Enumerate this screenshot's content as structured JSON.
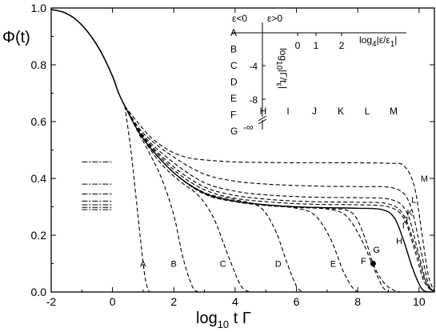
{
  "chart_data": {
    "type": "line",
    "title": "",
    "xlabel_parts": [
      "log",
      "10",
      " t Γ"
    ],
    "ylabel_parts": [
      "Φ(t)"
    ],
    "xlim": [
      -2,
      10.5
    ],
    "ylim": [
      0,
      1.0
    ],
    "x_ticks": [
      -2,
      0,
      2,
      4,
      6,
      8,
      10
    ],
    "y_ticks": [
      0.0,
      0.2,
      0.4,
      0.6,
      0.8,
      1.0
    ],
    "x_tick_labels": [
      "-2",
      "0",
      "2",
      "4",
      "6",
      "8",
      "10"
    ],
    "y_tick_labels": [
      "0.0",
      "0.2",
      "0.4",
      "0.6",
      "0.8",
      "1.0"
    ],
    "grid": false,
    "legend": "none",
    "series_common_start": {
      "x": [
        -2.0,
        -1.6,
        -1.2,
        -0.8,
        -0.4,
        0.0,
        0.2,
        0.4
      ],
      "y": [
        0.995,
        0.985,
        0.96,
        0.915,
        0.85,
        0.76,
        0.7,
        0.655
      ]
    },
    "series": [
      {
        "label": "A",
        "style": "dashed",
        "label_pos": [
          0.9,
          0.1
        ],
        "x": [
          0.4,
          0.6,
          0.8,
          1.0,
          1.1,
          1.2
        ],
        "y": [
          0.655,
          0.5,
          0.3,
          0.1,
          0.03,
          0.0
        ]
      },
      {
        "label": "B",
        "style": "dashed",
        "label_pos": [
          1.9,
          0.1
        ],
        "x": [
          0.4,
          0.8,
          1.2,
          1.6,
          2.0,
          2.3,
          2.6,
          2.8
        ],
        "y": [
          0.655,
          0.57,
          0.49,
          0.4,
          0.27,
          0.12,
          0.02,
          0.0
        ]
      },
      {
        "label": "C",
        "style": "dashed",
        "label_pos": [
          3.5,
          0.1
        ],
        "x": [
          0.4,
          1.0,
          1.6,
          2.2,
          2.8,
          3.3,
          3.8,
          4.2,
          4.5
        ],
        "y": [
          0.655,
          0.54,
          0.45,
          0.39,
          0.34,
          0.26,
          0.12,
          0.02,
          0.0
        ]
      },
      {
        "label": "D",
        "style": "dashed",
        "label_pos": [
          5.3,
          0.1
        ],
        "x": [
          0.4,
          1.0,
          2.0,
          3.0,
          4.0,
          4.8,
          5.3,
          5.7,
          6.0,
          6.2
        ],
        "y": [
          0.655,
          0.54,
          0.42,
          0.35,
          0.325,
          0.3,
          0.22,
          0.1,
          0.02,
          0.0
        ]
      },
      {
        "label": "E",
        "style": "dashed",
        "label_pos": [
          7.1,
          0.1
        ],
        "x": [
          0.4,
          1.0,
          2.0,
          3.0,
          4.0,
          5.0,
          6.0,
          6.6,
          7.1,
          7.5,
          7.8,
          8.0
        ],
        "y": [
          0.655,
          0.54,
          0.42,
          0.345,
          0.318,
          0.305,
          0.295,
          0.27,
          0.19,
          0.08,
          0.02,
          0.0
        ]
      },
      {
        "label": "F",
        "style": "dashed",
        "label_pos": [
          8.1,
          0.11
        ],
        "x": [
          0.4,
          1.0,
          2.0,
          3.0,
          4.0,
          5.0,
          6.0,
          7.0,
          7.6,
          8.1,
          8.5,
          8.8,
          9.0
        ],
        "y": [
          0.655,
          0.54,
          0.42,
          0.345,
          0.318,
          0.305,
          0.298,
          0.292,
          0.27,
          0.19,
          0.09,
          0.02,
          0.0
        ]
      },
      {
        "label": "G",
        "style": "dashed",
        "label_pos": [
          8.5,
          0.15
        ],
        "x": [
          0.4,
          1.0,
          2.0,
          3.0,
          4.0,
          5.0,
          6.0,
          7.0,
          7.8,
          8.2,
          8.5,
          8.8,
          9.1,
          9.4
        ],
        "y": [
          0.655,
          0.54,
          0.42,
          0.345,
          0.318,
          0.305,
          0.298,
          0.294,
          0.28,
          0.2,
          0.1,
          0.04,
          0.01,
          0.0
        ]
      },
      {
        "label": "H",
        "style": "solid",
        "label_pos": [
          9.25,
          0.18
        ],
        "x": [
          0.4,
          1.0,
          2.0,
          3.0,
          4.0,
          5.0,
          6.0,
          7.0,
          8.0,
          8.8,
          9.2,
          9.5,
          9.8,
          10.1,
          10.4
        ],
        "y": [
          0.655,
          0.54,
          0.42,
          0.348,
          0.32,
          0.307,
          0.3,
          0.297,
          0.295,
          0.29,
          0.26,
          0.18,
          0.08,
          0.01,
          0.0
        ]
      },
      {
        "label": "I",
        "style": "dashed",
        "label_pos": [
          9.45,
          0.235
        ],
        "x": [
          0.4,
          1.0,
          2.0,
          3.0,
          4.0,
          5.0,
          6.0,
          7.0,
          8.0,
          9.0,
          9.5,
          9.85,
          10.15,
          10.45
        ],
        "y": [
          0.655,
          0.545,
          0.43,
          0.36,
          0.33,
          0.318,
          0.311,
          0.308,
          0.307,
          0.3,
          0.26,
          0.15,
          0.04,
          0.0
        ]
      },
      {
        "label": "J",
        "style": "dashed",
        "label_pos": [
          9.5,
          0.255
        ],
        "x": [
          0.4,
          1.0,
          2.0,
          3.0,
          4.0,
          5.0,
          6.0,
          7.0,
          8.0,
          9.0,
          9.5,
          9.9,
          10.2,
          10.5
        ],
        "y": [
          0.655,
          0.548,
          0.44,
          0.37,
          0.34,
          0.327,
          0.32,
          0.317,
          0.316,
          0.31,
          0.27,
          0.15,
          0.04,
          0.0
        ]
      },
      {
        "label": "K",
        "style": "dashed",
        "label_pos": [
          9.6,
          0.28
        ],
        "x": [
          0.4,
          1.0,
          2.0,
          3.0,
          4.0,
          5.0,
          6.0,
          7.0,
          8.0,
          9.1,
          9.6,
          9.95,
          10.25,
          10.5
        ],
        "y": [
          0.655,
          0.552,
          0.455,
          0.385,
          0.355,
          0.342,
          0.336,
          0.333,
          0.332,
          0.325,
          0.28,
          0.15,
          0.03,
          0.0
        ]
      },
      {
        "label": "L",
        "style": "dashed",
        "label_pos": [
          9.75,
          0.325
        ],
        "x": [
          0.4,
          1.0,
          2.0,
          3.0,
          4.0,
          5.0,
          6.0,
          7.0,
          8.0,
          9.2,
          9.7,
          10.05,
          10.3,
          10.5
        ],
        "y": [
          0.655,
          0.56,
          0.475,
          0.415,
          0.39,
          0.38,
          0.375,
          0.372,
          0.371,
          0.365,
          0.31,
          0.15,
          0.03,
          0.0
        ]
      },
      {
        "label": "M",
        "style": "dashed",
        "label_pos": [
          10.05,
          0.4
        ],
        "x": [
          0.4,
          0.8,
          1.2,
          1.6,
          2.0,
          2.5,
          3.0,
          4.0,
          5.0,
          6.0,
          7.0,
          8.0,
          9.0,
          9.5,
          9.85,
          10.1,
          10.3,
          10.5
        ],
        "y": [
          0.655,
          0.6,
          0.55,
          0.515,
          0.49,
          0.472,
          0.465,
          0.458,
          0.456,
          0.455,
          0.455,
          0.455,
          0.453,
          0.445,
          0.37,
          0.2,
          0.06,
          0.0
        ]
      }
    ],
    "critical_marker": {
      "x": 8.5,
      "y": 0.1
    },
    "plateau_marks_y": [
      0.458,
      0.38,
      0.345,
      0.32,
      0.307,
      0.298,
      0.29
    ],
    "inset": {
      "left_header": "ε<0",
      "right_header": "ε>0",
      "x_axis_label_parts": [
        "log",
        "4",
        "|ε/ε",
        "1",
        "|"
      ],
      "y_axis_label_parts": [
        "log",
        "10",
        "|Γ/t",
        "ε",
        "|"
      ],
      "x_tick_labels": [
        "0",
        "1",
        "2"
      ],
      "y_tick_labels": [
        "-4",
        "-8"
      ],
      "infinity_label": "-∞",
      "left_points": [
        "A",
        "B",
        "C",
        "D",
        "E",
        "F",
        "G"
      ],
      "right_points": [
        "H",
        "I",
        "J",
        "K",
        "L",
        "M"
      ]
    }
  }
}
